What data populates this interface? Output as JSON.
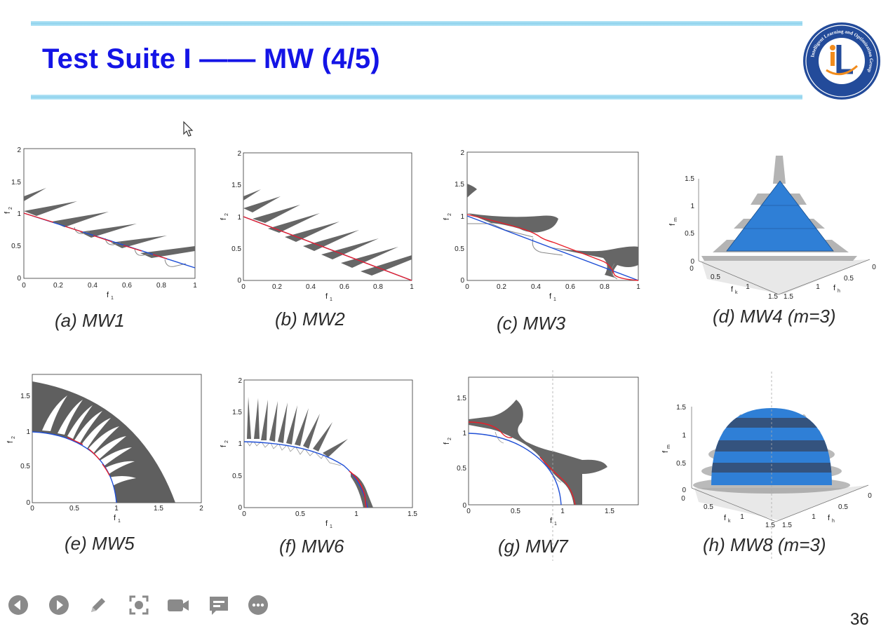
{
  "slide": {
    "title": "Test Suite I —— MW (4/5)",
    "page_number": "36"
  },
  "logo": {
    "text": "Intelligent Learning and Optimization Group",
    "cn_text": "智能学习和优化实验室",
    "monogram": "iL"
  },
  "figures": [
    {
      "id": "a",
      "caption": "(a) MW1",
      "xlabel": "f",
      "xsub": "1",
      "ylabel": "f",
      "ysub": "2",
      "xticks": [
        "0",
        "0.2",
        "0.4",
        "0.6",
        "0.8",
        "1"
      ],
      "yticks": [
        "0",
        "0.5",
        "1",
        "1.5",
        "2"
      ]
    },
    {
      "id": "b",
      "caption": "(b) MW2",
      "xlabel": "f",
      "xsub": "1",
      "ylabel": "f",
      "ysub": "2",
      "xticks": [
        "0",
        "0.2",
        "0.4",
        "0.6",
        "0.8",
        "1"
      ],
      "yticks": [
        "0",
        "0.5",
        "1",
        "1.5",
        "2"
      ]
    },
    {
      "id": "c",
      "caption": "(c) MW3",
      "xlabel": "f",
      "xsub": "1",
      "ylabel": "f",
      "ysub": "2",
      "xticks": [
        "0",
        "0.2",
        "0.4",
        "0.6",
        "0.8",
        "1"
      ],
      "yticks": [
        "0",
        "0.5",
        "1",
        "1.5",
        "2"
      ]
    },
    {
      "id": "d",
      "caption": "(d) MW4 (m=3)",
      "zlabel": "f",
      "zsub": "m",
      "klabel": "f",
      "ksub": "k",
      "hlabel": "f",
      "hsub": "h",
      "zticks": [
        "0",
        "0.5",
        "1",
        "1.5"
      ],
      "kticks": [
        "0",
        "0.5",
        "1",
        "1.5"
      ],
      "hticks": [
        "0",
        "0.5",
        "1",
        "1.5"
      ]
    },
    {
      "id": "e",
      "caption": "(e) MW5",
      "xlabel": "f",
      "xsub": "1",
      "ylabel": "f",
      "ysub": "2",
      "xticks": [
        "0",
        "0.5",
        "1",
        "1.5",
        "2"
      ],
      "yticks": [
        "0",
        "0.5",
        "1",
        "1.5"
      ]
    },
    {
      "id": "f",
      "caption": "(f) MW6",
      "xlabel": "f",
      "xsub": "1",
      "ylabel": "f",
      "ysub": "2",
      "xticks": [
        "0",
        "0.5",
        "1",
        "1.5"
      ],
      "yticks": [
        "0",
        "0.5",
        "1",
        "1.5",
        "2"
      ]
    },
    {
      "id": "g",
      "caption": "(g) MW7",
      "xlabel": "f",
      "xsub": "1",
      "ylabel": "f",
      "ysub": "2",
      "xticks": [
        "0",
        "0.5",
        "1",
        "1.5"
      ],
      "yticks": [
        "0",
        "0.5",
        "1",
        "1.5"
      ]
    },
    {
      "id": "h",
      "caption": "(h) MW8 (m=3)",
      "zlabel": "f",
      "zsub": "m",
      "klabel": "f",
      "ksub": "k",
      "hlabel": "f",
      "hsub": "h",
      "zticks": [
        "0",
        "0.5",
        "1",
        "1.5"
      ],
      "kticks": [
        "0",
        "0.5",
        "1",
        "1.5"
      ],
      "hticks": [
        "0",
        "0.5",
        "1",
        "1.5"
      ]
    }
  ],
  "colors": {
    "title": "#1414e6",
    "pareto_front": "#e8202a",
    "reference_front": "#1f4fd6",
    "feasible_region": "#5f5f5f",
    "surface": "#2f7fd6",
    "bar": "#8fd3ee"
  },
  "toolbar": {
    "buttons": [
      {
        "name": "prev-slide-button",
        "icon": "chevron-left-icon"
      },
      {
        "name": "next-slide-button",
        "icon": "chevron-right-icon"
      },
      {
        "name": "pen-tool-button",
        "icon": "pencil-icon"
      },
      {
        "name": "screen-capture-button",
        "icon": "screenshot-icon"
      },
      {
        "name": "video-button",
        "icon": "camera-icon"
      },
      {
        "name": "chat-button",
        "icon": "chat-icon"
      },
      {
        "name": "more-options-button",
        "icon": "more-icon"
      }
    ]
  }
}
